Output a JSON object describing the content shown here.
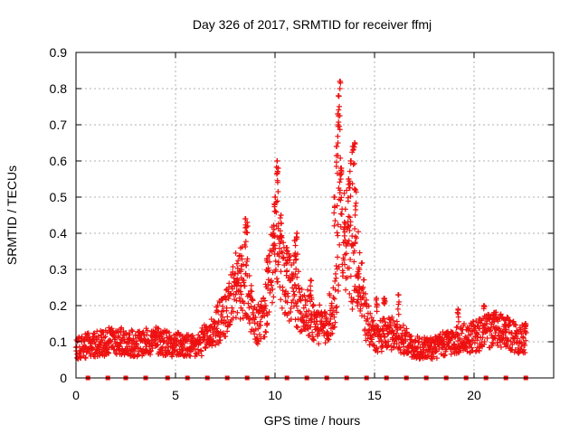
{
  "chart_data": {
    "type": "scatter",
    "title": "Day 326 of 2017, SRMTID for receiver ffmj",
    "xlabel": "GPS time / hours",
    "ylabel": "SRMTID / TECUs",
    "xlim": [
      0,
      24
    ],
    "ylim": [
      0,
      0.9
    ],
    "xticks": [
      0,
      5,
      10,
      15,
      20
    ],
    "yticks": [
      0,
      0.1,
      0.2,
      0.3,
      0.4,
      0.5,
      0.6,
      0.7,
      0.8,
      0.9
    ],
    "xtick_labels": [
      "0",
      "5",
      "10",
      "15",
      "20"
    ],
    "ytick_labels": [
      "0",
      "0.1",
      "0.2",
      "0.3",
      "0.4",
      "0.5",
      "0.6",
      "0.7",
      "0.8",
      "0.9"
    ],
    "grid": true,
    "marker": "+",
    "color": "#ee1111",
    "baseline_markers_x": [
      0.6,
      1.6,
      2.5,
      3.5,
      4.6,
      5.6,
      6.6,
      7.6,
      8.6,
      9.6,
      10.6,
      11.6,
      12.6,
      13.6,
      14.6,
      15.6,
      16.6,
      17.6,
      18.6,
      19.6,
      20.6,
      21.6,
      22.6
    ],
    "envelope": [
      [
        0.0,
        0.08
      ],
      [
        1.0,
        0.09
      ],
      [
        2.0,
        0.1
      ],
      [
        3.0,
        0.09
      ],
      [
        4.0,
        0.1
      ],
      [
        5.0,
        0.09
      ],
      [
        6.0,
        0.08
      ],
      [
        6.8,
        0.12
      ],
      [
        7.5,
        0.17
      ],
      [
        8.0,
        0.24
      ],
      [
        8.5,
        0.26
      ],
      [
        9.0,
        0.13
      ],
      [
        9.5,
        0.17
      ],
      [
        10.0,
        0.35
      ],
      [
        10.5,
        0.25
      ],
      [
        11.0,
        0.22
      ],
      [
        11.5,
        0.18
      ],
      [
        12.0,
        0.15
      ],
      [
        12.5,
        0.13
      ],
      [
        13.0,
        0.2
      ],
      [
        13.3,
        0.45
      ],
      [
        13.8,
        0.3
      ],
      [
        14.2,
        0.28
      ],
      [
        14.6,
        0.15
      ],
      [
        15.0,
        0.11
      ],
      [
        16.0,
        0.12
      ],
      [
        17.0,
        0.08
      ],
      [
        18.0,
        0.08
      ],
      [
        19.0,
        0.1
      ],
      [
        20.0,
        0.11
      ],
      [
        21.0,
        0.13
      ],
      [
        22.0,
        0.11
      ],
      [
        22.6,
        0.1
      ]
    ],
    "spikes": [
      [
        8.1,
        0.27
      ],
      [
        8.3,
        0.31
      ],
      [
        8.5,
        0.44
      ],
      [
        8.6,
        0.43
      ],
      [
        9.6,
        0.33
      ],
      [
        9.9,
        0.4
      ],
      [
        10.0,
        0.5
      ],
      [
        10.1,
        0.6
      ],
      [
        10.15,
        0.58
      ],
      [
        10.3,
        0.45
      ],
      [
        10.6,
        0.36
      ],
      [
        11.0,
        0.38
      ],
      [
        11.1,
        0.4
      ],
      [
        11.8,
        0.27
      ],
      [
        13.0,
        0.5
      ],
      [
        13.1,
        0.64
      ],
      [
        13.15,
        0.73
      ],
      [
        13.2,
        0.78
      ],
      [
        13.25,
        0.82
      ],
      [
        13.3,
        0.58
      ],
      [
        13.5,
        0.43
      ],
      [
        13.7,
        0.55
      ],
      [
        13.8,
        0.6
      ],
      [
        13.9,
        0.64
      ],
      [
        14.0,
        0.65
      ],
      [
        14.05,
        0.52
      ],
      [
        14.2,
        0.3
      ],
      [
        15.1,
        0.22
      ],
      [
        15.5,
        0.22
      ],
      [
        16.2,
        0.23
      ],
      [
        19.2,
        0.19
      ],
      [
        20.5,
        0.2
      ],
      [
        21.0,
        0.18
      ],
      [
        21.6,
        0.16
      ],
      [
        22.6,
        0.15
      ]
    ]
  }
}
